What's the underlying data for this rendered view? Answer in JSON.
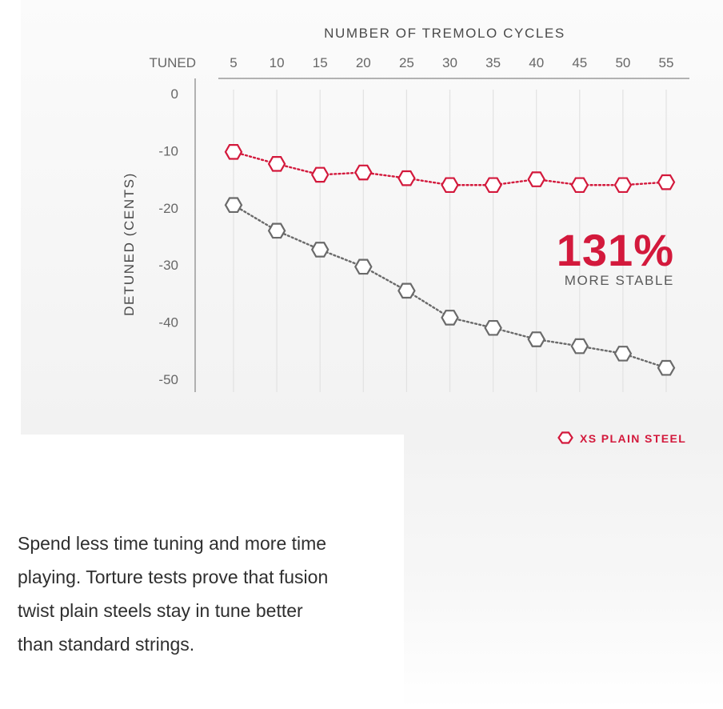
{
  "chart_data": {
    "type": "line",
    "title": "NUMBER OF TREMOLO CYCLES",
    "xlabel": "NUMBER OF TREMOLO CYCLES",
    "ylabel": "DETUNED (CENTS)",
    "x_origin_label": "TUNED",
    "x": [
      5,
      10,
      15,
      20,
      25,
      30,
      35,
      40,
      45,
      50,
      55
    ],
    "x_tick_labels": [
      "5",
      "10",
      "15",
      "20",
      "25",
      "30",
      "35",
      "40",
      "45",
      "50",
      "55"
    ],
    "y_tick_values": [
      0,
      -10,
      -20,
      -30,
      -40,
      -50
    ],
    "y_tick_labels": [
      "0",
      "-10",
      "-20",
      "-30",
      "-40",
      "-50"
    ],
    "ylim": [
      -50,
      0
    ],
    "series": [
      {
        "name": "XS PLAIN STEEL",
        "color": "#d3193c",
        "values": [
          -10.2,
          -12.3,
          -14.2,
          -13.8,
          -14.8,
          -16,
          -16,
          -15,
          -16,
          -16,
          -15.5
        ]
      },
      {
        "name": "",
        "color": "#6a6a6a",
        "values": [
          -19.5,
          -24,
          -27.3,
          -30.3,
          -34.5,
          -39.2,
          -41,
          -43,
          -44.2,
          -45.5,
          -48
        ]
      }
    ],
    "annotation": {
      "value": "131%",
      "label": "MORE STABLE"
    },
    "legend": {
      "position": "bottom-right",
      "label": "XS PLAIN STEEL"
    },
    "grid": "vertical"
  },
  "description_text": "Spend less time tuning and more time playing. Torture tests prove that fusion twist plain steels stay in tune better than standard strings."
}
